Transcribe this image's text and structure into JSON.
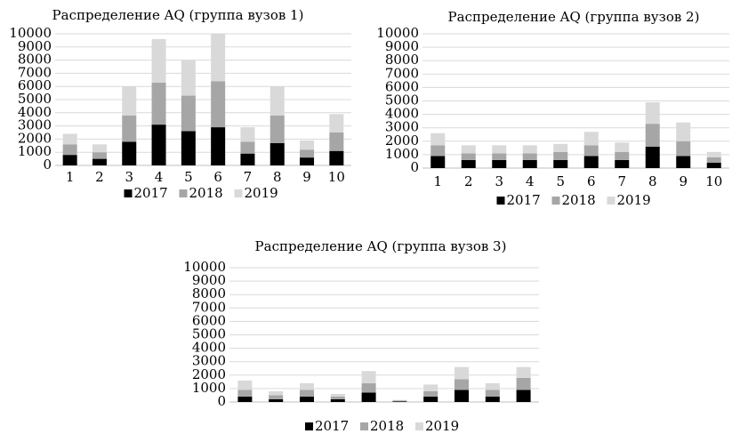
{
  "chart_data": [
    {
      "type": "bar",
      "stacked": true,
      "title": "Распределение AQ (группа вузов 1)",
      "categories": [
        "1",
        "2",
        "3",
        "4",
        "5",
        "6",
        "7",
        "8",
        "9",
        "10"
      ],
      "series": [
        {
          "name": "2017",
          "color": "#000000",
          "values": [
            800,
            500,
            1800,
            3100,
            2600,
            2900,
            900,
            1700,
            600,
            1100
          ]
        },
        {
          "name": "2018",
          "color": "#a6a6a6",
          "values": [
            800,
            500,
            2000,
            3200,
            2700,
            3500,
            900,
            2100,
            600,
            1400
          ]
        },
        {
          "name": "2019",
          "color": "#d9d9d9",
          "values": [
            800,
            600,
            2200,
            3300,
            2700,
            3600,
            1100,
            2200,
            700,
            1400
          ]
        }
      ],
      "ylim": [
        0,
        10000
      ],
      "yticks": [
        0,
        1000,
        2000,
        3000,
        4000,
        5000,
        6000,
        7000,
        8000,
        9000,
        10000
      ],
      "grid": true
    },
    {
      "type": "bar",
      "stacked": true,
      "title": "Распределение AQ (группа вузов 2)",
      "categories": [
        "1",
        "2",
        "3",
        "4",
        "5",
        "6",
        "7",
        "8",
        "9",
        "10"
      ],
      "series": [
        {
          "name": "2017",
          "color": "#000000",
          "values": [
            900,
            600,
            600,
            600,
            600,
            900,
            600,
            1600,
            900,
            400
          ]
        },
        {
          "name": "2018",
          "color": "#a6a6a6",
          "values": [
            800,
            500,
            500,
            500,
            600,
            800,
            600,
            1700,
            1100,
            400
          ]
        },
        {
          "name": "2019",
          "color": "#d9d9d9",
          "values": [
            900,
            600,
            600,
            600,
            600,
            1000,
            700,
            1600,
            1400,
            400
          ]
        }
      ],
      "ylim": [
        0,
        10000
      ],
      "yticks": [
        0,
        1000,
        2000,
        3000,
        4000,
        5000,
        6000,
        7000,
        8000,
        9000,
        10000
      ],
      "grid": true
    },
    {
      "type": "bar",
      "stacked": true,
      "title": "Распределение AQ (группа вузов 3)",
      "categories": [
        null,
        null,
        null,
        null,
        null,
        null,
        null,
        null,
        null,
        null
      ],
      "series": [
        {
          "name": "2017",
          "color": "#000000",
          "values": [
            400,
            200,
            400,
            200,
            700,
            50,
            400,
            900,
            400,
            900
          ]
        },
        {
          "name": "2018",
          "color": "#a6a6a6",
          "values": [
            500,
            300,
            500,
            200,
            700,
            50,
            400,
            800,
            500,
            900
          ]
        },
        {
          "name": "2019",
          "color": "#d9d9d9",
          "values": [
            700,
            300,
            500,
            200,
            900,
            50,
            500,
            900,
            500,
            800
          ]
        }
      ],
      "ylim": [
        0,
        10000
      ],
      "yticks": [
        0,
        1000,
        2000,
        3000,
        4000,
        5000,
        6000,
        7000,
        8000,
        9000,
        10000
      ],
      "grid": true
    }
  ]
}
